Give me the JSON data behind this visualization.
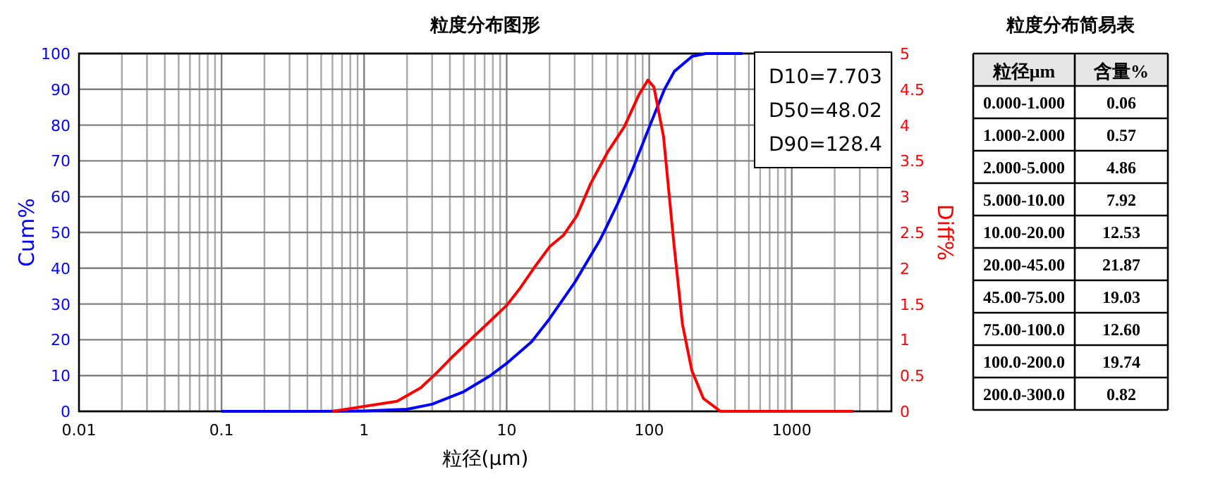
{
  "chart_data": [
    {
      "type": "line",
      "title": "粒度分布图形",
      "xlabel": "粒径(μm)",
      "ylabel": "Cum%",
      "y2label": "Diff%",
      "log": "x",
      "grid": true,
      "marker": "none",
      "line_style": "solid",
      "xlim": [
        0.01,
        5000
      ],
      "xticks": [
        0.01,
        0.1,
        1,
        10,
        100,
        1000
      ],
      "ylim": [
        0,
        100
      ],
      "yticks": [
        0,
        10,
        20,
        30,
        40,
        50,
        60,
        70,
        80,
        90,
        100
      ],
      "y2lim": [
        0,
        5
      ],
      "y2ticks": [
        0,
        0.5,
        1,
        1.5,
        2,
        2.5,
        3,
        3.5,
        4,
        4.5,
        5
      ],
      "annotations": [
        "D10=7.703",
        "D50=48.02",
        "D90=128.4"
      ],
      "series": [
        {
          "color": "#0000ff",
          "x": [
            0.1,
            0.5,
            1,
            2,
            3,
            5,
            7.7,
            10,
            15,
            20,
            30,
            45,
            48,
            60,
            75,
            100,
            128,
            150,
            200,
            250,
            300,
            450
          ],
          "values": [
            0,
            0,
            0.1,
            0.6,
            2,
            5.5,
            10,
            13.4,
            19.5,
            25.9,
            36,
            47.8,
            50,
            58,
            66.8,
            79.4,
            90,
            95,
            99.2,
            100,
            100,
            100
          ]
        },
        {
          "color": "#ff0000",
          "axis": "y2",
          "x": [
            0.6,
            1.7,
            2.5,
            3.2,
            4.2,
            6.6,
            10,
            12.3,
            15.5,
            20,
            25,
            31,
            39,
            51,
            67,
            85,
            98,
            108,
            126,
            148,
            171,
            199,
            240,
            316,
            2700
          ],
          "values": [
            0,
            0.14,
            0.33,
            0.53,
            0.77,
            1.14,
            1.48,
            1.71,
            2.0,
            2.3,
            2.46,
            2.73,
            3.19,
            3.62,
            3.98,
            4.43,
            4.63,
            4.53,
            3.84,
            2.4,
            1.22,
            0.57,
            0.18,
            0,
            0
          ]
        }
      ]
    },
    {
      "type": "other",
      "title": "粒度分布简易表",
      "xlabel": "粒径μm",
      "ylabel": "含量%",
      "categories": [
        "0.000-1.000",
        "1.000-2.000",
        "2.000-5.000",
        "5.000-10.00",
        "10.00-20.00",
        "20.00-45.00",
        "45.00-75.00",
        "75.00-100.0",
        "100.0-200.0",
        "200.0-300.0"
      ],
      "value_labels": [
        "0.06",
        "0.57",
        "4.86",
        "7.92",
        "12.53",
        "21.87",
        "19.03",
        "12.60",
        "19.74",
        "0.82"
      ]
    }
  ]
}
